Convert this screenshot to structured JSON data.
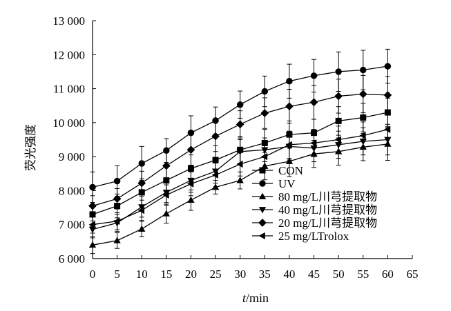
{
  "chart_data": {
    "type": "line",
    "ylabel": "荧光强度",
    "xlabel": "/min",
    "xlabel_italic_prefix": "t",
    "xlim": [
      0,
      65
    ],
    "ylim": [
      6000,
      13000
    ],
    "x_ticks": [
      "0",
      "5",
      "10",
      "15",
      "20",
      "25",
      "30",
      "35",
      "40",
      "45",
      "50",
      "55",
      "60",
      "65"
    ],
    "y_ticks": [
      "6 000",
      "7 000",
      "8 000",
      "9 000",
      "10 000",
      "11 000",
      "12 000",
      "13 000"
    ],
    "grid": false,
    "legend_position": "bottom-right",
    "x": [
      0,
      5,
      10,
      15,
      20,
      25,
      30,
      35,
      40,
      45,
      50,
      55,
      60
    ],
    "series": [
      {
        "name": "CON",
        "marker": "square",
        "values": [
          7300,
          7550,
          7950,
          8300,
          8650,
          8900,
          9200,
          9400,
          9650,
          9700,
          10050,
          10150,
          10300
        ],
        "errors": [
          350,
          350,
          400,
          400,
          400,
          420,
          400,
          400,
          400,
          400,
          420,
          420,
          420
        ]
      },
      {
        "name": "UV",
        "marker": "circle",
        "values": [
          8100,
          8280,
          8800,
          9180,
          9700,
          10060,
          10530,
          10920,
          11220,
          11380,
          11500,
          11550,
          11660
        ],
        "errors": [
          450,
          450,
          500,
          350,
          500,
          400,
          400,
          450,
          500,
          480,
          580,
          580,
          500
        ]
      },
      {
        "name": "80 mg/L川芎提取物",
        "marker": "triangle-up",
        "values": [
          6400,
          6530,
          6870,
          7320,
          7720,
          8100,
          8300,
          8720,
          8860,
          9080,
          9150,
          9280,
          9370
        ],
        "errors": [
          250,
          230,
          230,
          280,
          300,
          200,
          250,
          400,
          450,
          400,
          400,
          400,
          480
        ]
      },
      {
        "name": "40 mg/L川芎提取物",
        "marker": "triangle-down",
        "values": [
          6860,
          7050,
          7520,
          7950,
          8300,
          8570,
          9150,
          9200,
          9300,
          9250,
          9350,
          9450,
          9500
        ],
        "errors": [
          250,
          250,
          300,
          300,
          350,
          350,
          350,
          350,
          400,
          400,
          400,
          400,
          450
        ]
      },
      {
        "name": "20 mg/L川芎提取物",
        "marker": "diamond",
        "values": [
          7550,
          7760,
          8220,
          8730,
          9200,
          9600,
          9950,
          10280,
          10480,
          10600,
          10780,
          10840,
          10810
        ],
        "errors": [
          300,
          300,
          350,
          400,
          450,
          450,
          400,
          450,
          500,
          500,
          500,
          550,
          550
        ]
      },
      {
        "name": "25 mg/LTrolox",
        "marker": "triangle-left",
        "values": [
          7000,
          7100,
          7420,
          7870,
          8200,
          8460,
          8780,
          9000,
          9350,
          9400,
          9500,
          9620,
          9800
        ],
        "errors": [
          250,
          250,
          300,
          300,
          350,
          350,
          350,
          350,
          400,
          400,
          400,
          400,
          450
        ]
      }
    ]
  }
}
